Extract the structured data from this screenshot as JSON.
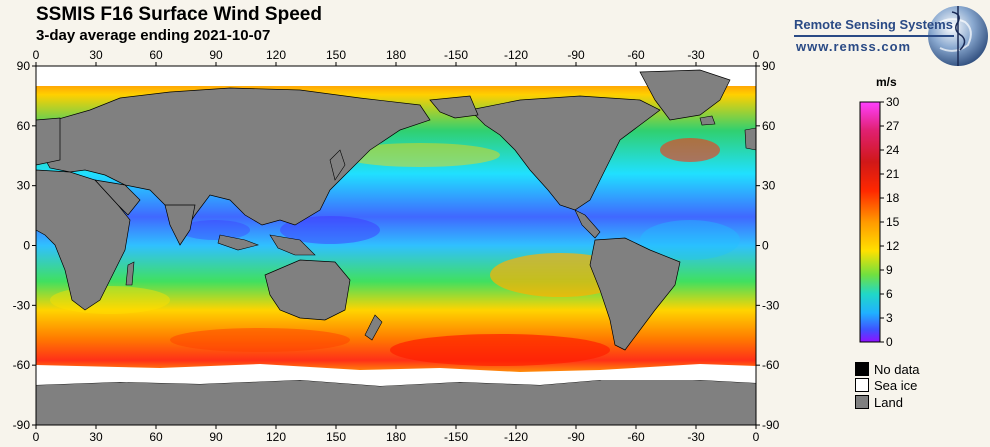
{
  "header": {
    "title": "SSMIS F16 Surface Wind Speed",
    "subtitle": "3-day average ending 2021-10-07"
  },
  "brand": {
    "name": "Remote Sensing Systems",
    "url": "www.remss.com",
    "logo": "globe-logo-icon"
  },
  "map": {
    "projection": "equirectangular",
    "lon_range": [
      0,
      360
    ],
    "lat_range": [
      -90,
      90
    ],
    "lon_tick_labels": [
      "0",
      "30",
      "60",
      "90",
      "120",
      "150",
      "180",
      "-150",
      "-120",
      "-90",
      "-60",
      "-30",
      "0"
    ],
    "lat_tick_labels": [
      "90",
      "60",
      "30",
      "0",
      "-30",
      "-60",
      "-90"
    ],
    "land_color": "#808080",
    "sea_ice_color": "#ffffff",
    "no_data_color": "#000000"
  },
  "colorbar": {
    "units": "m/s",
    "range": [
      0,
      30
    ],
    "tick_labels": [
      "30",
      "27",
      "24",
      "21",
      "18",
      "15",
      "12",
      "9",
      "6",
      "3",
      "0"
    ]
  },
  "legend": [
    {
      "label": "No data",
      "color": "#000000"
    },
    {
      "label": "Sea ice",
      "color": "#ffffff"
    },
    {
      "label": "Land",
      "color": "#808080"
    }
  ]
}
